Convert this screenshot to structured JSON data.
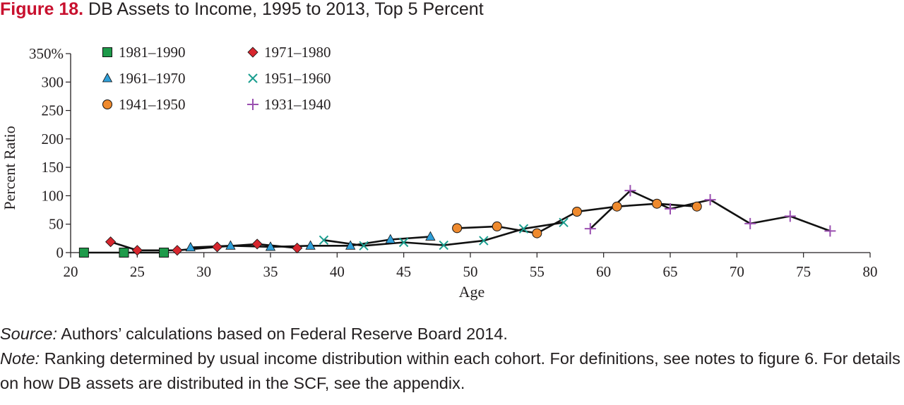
{
  "figure": {
    "number_label": "Figure 18.",
    "title": "DB Assets to Income, 1995 to 2013, Top 5 Percent"
  },
  "notes": {
    "source_label": "Source:",
    "source_text": " Authors’ calculations based on Federal Reserve Board 2014.",
    "note_label": "Note:",
    "note_text": " Ranking determined by usual income distribution within each cohort. For definitions, see notes to figure 6. For details on how DB assets are distributed in the SCF, see the appendix."
  },
  "chart_data": {
    "type": "line",
    "xlabel": "Age",
    "ylabel": "Percent Ratio",
    "xlim": [
      20,
      80
    ],
    "ylim": [
      0,
      350
    ],
    "x_ticks": [
      20,
      25,
      30,
      35,
      40,
      45,
      50,
      55,
      60,
      65,
      70,
      75,
      80
    ],
    "y_ticks": [
      0,
      50,
      100,
      150,
      200,
      250,
      300,
      350
    ],
    "y_tick_labels": [
      "0",
      "50",
      "100",
      "150",
      "200",
      "250",
      "300",
      "350%"
    ],
    "grid": false,
    "legend_position": "top-left",
    "series": [
      {
        "name": "1981–1990",
        "marker": "square",
        "color": "#1e9a4a",
        "x": [
          21,
          24,
          27
        ],
        "y": [
          0,
          0,
          0
        ]
      },
      {
        "name": "1971–1980",
        "marker": "diamond",
        "color": "#d7262e",
        "x": [
          23,
          25,
          28,
          31,
          34,
          37
        ],
        "y": [
          19,
          4,
          4,
          10,
          15,
          8
        ]
      },
      {
        "name": "1961–1970",
        "marker": "triangle",
        "color": "#2f9fd8",
        "x": [
          29,
          32,
          35,
          38,
          41,
          44,
          47
        ],
        "y": [
          9,
          12,
          10,
          12,
          12,
          23,
          28
        ]
      },
      {
        "name": "1951–1960",
        "marker": "x",
        "color": "#1b9e8f",
        "x": [
          39,
          42,
          45,
          48,
          51,
          54,
          57
        ],
        "y": [
          22,
          12,
          18,
          13,
          21,
          42,
          53
        ]
      },
      {
        "name": "1941–1950",
        "marker": "circle",
        "color": "#ef8a2e",
        "x": [
          49,
          52,
          55,
          58,
          61,
          64,
          67
        ],
        "y": [
          43,
          46,
          34,
          72,
          81,
          86,
          81
        ]
      },
      {
        "name": "1931–1940",
        "marker": "plus",
        "color": "#9a4fb0",
        "x": [
          59,
          62,
          65,
          68,
          71,
          74,
          77
        ],
        "y": [
          42,
          109,
          77,
          93,
          51,
          64,
          38
        ]
      }
    ]
  }
}
